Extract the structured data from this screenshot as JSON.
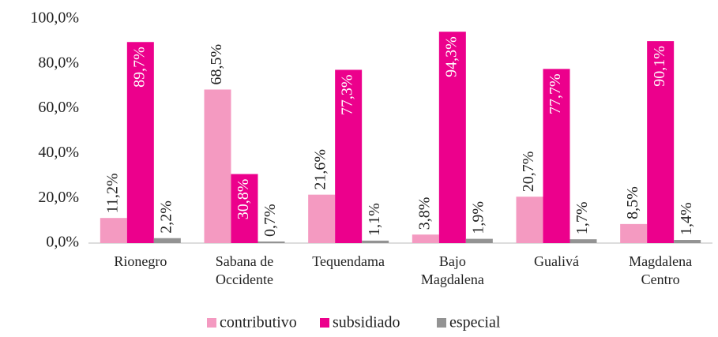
{
  "chart_data": {
    "type": "bar",
    "categories": [
      "Rionegro",
      "Sabana de Occidente",
      "Tequendama",
      "Bajo Magdalena",
      "Gualivá",
      "Magdalena Centro"
    ],
    "series": [
      {
        "name": "contributivo",
        "color": "#f49ac1",
        "values": [
          11.2,
          68.5,
          21.6,
          3.8,
          20.7,
          8.5
        ],
        "value_labels": [
          "11,2%",
          "68,5%",
          "21,6%",
          "3,8%",
          "20,7%",
          "8,5%"
        ]
      },
      {
        "name": "subsidiado",
        "color": "#ec008c",
        "values": [
          89.7,
          30.8,
          77.3,
          94.3,
          77.7,
          90.1
        ],
        "value_labels": [
          "89,7%",
          "30,8%",
          "77,3%",
          "94,3%",
          "77,7%",
          "90,1%"
        ]
      },
      {
        "name": "especial",
        "color": "#939393",
        "values": [
          2.2,
          0.7,
          1.1,
          1.9,
          1.7,
          1.4
        ],
        "value_labels": [
          "2,2%",
          "0,7%",
          "1,1%",
          "1,9%",
          "1,7%",
          "1,4%"
        ]
      }
    ],
    "ylim": [
      0,
      100
    ],
    "yticks": [
      {
        "value": 0,
        "label": "0,0%"
      },
      {
        "value": 20,
        "label": "20,0%"
      },
      {
        "value": 40,
        "label": "40,0%"
      },
      {
        "value": 60,
        "label": "60,0%"
      },
      {
        "value": 80,
        "label": "80,0%"
      },
      {
        "value": 100,
        "label": "100,0%"
      }
    ],
    "legend": "bottom"
  }
}
